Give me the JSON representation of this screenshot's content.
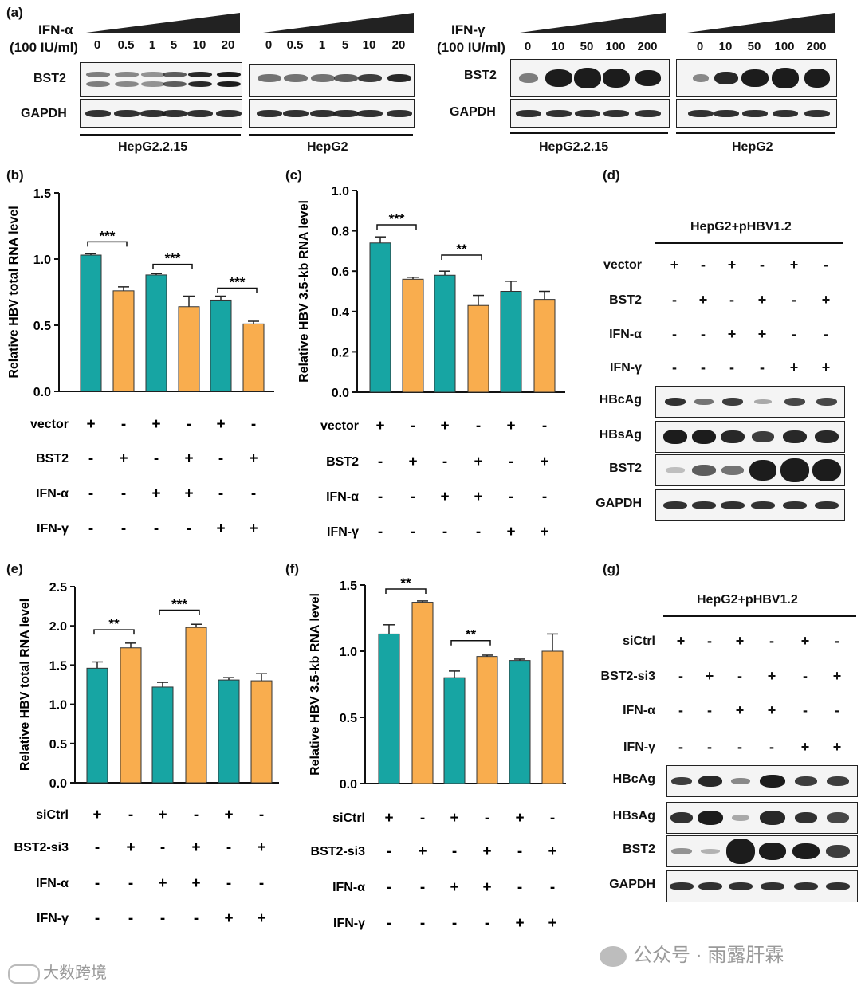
{
  "panel_a": {
    "label": "(a)",
    "ifn_alpha": {
      "agent": "IFN-α",
      "unit": "(100 IU/ml)",
      "doses": [
        "0",
        "0.5",
        "1",
        "5",
        "10",
        "20"
      ]
    },
    "ifn_gamma": {
      "agent": "IFN-γ",
      "unit": "(100 IU/ml)",
      "doses": [
        "0",
        "10",
        "50",
        "100",
        "200"
      ]
    },
    "rows": [
      "BST2",
      "GAPDH"
    ],
    "cells": [
      "HepG2.2.15",
      "HepG2",
      "HepG2.2.15",
      "HepG2"
    ]
  },
  "bar_colors": {
    "teal": "#17a5a3",
    "orange": "#f9ad4e"
  },
  "chart_data": [
    {
      "panel": "(b)",
      "type": "bar",
      "ylabel": "Relative HBV total RNA level",
      "ylim": [
        0,
        1.5
      ],
      "yticks": [
        "0.0",
        "0.5",
        "1.0",
        "1.5"
      ],
      "values": [
        1.03,
        0.76,
        0.88,
        0.64,
        0.69,
        0.51
      ],
      "errors": [
        0.01,
        0.03,
        0.01,
        0.08,
        0.03,
        0.02
      ],
      "colors": [
        "teal",
        "orange",
        "teal",
        "orange",
        "teal",
        "orange"
      ],
      "sig": [
        {
          "from": 0,
          "to": 1,
          "y": 1.13,
          "label": "***"
        },
        {
          "from": 2,
          "to": 3,
          "y": 0.96,
          "label": "***"
        },
        {
          "from": 4,
          "to": 5,
          "y": 0.78,
          "label": "***"
        }
      ],
      "rows": [
        {
          "name": "vector",
          "signs": [
            "+",
            "-",
            "+",
            "-",
            "+",
            "-"
          ]
        },
        {
          "name": "BST2",
          "signs": [
            "-",
            "+",
            "-",
            "+",
            "-",
            "+"
          ]
        },
        {
          "name": "IFN-α",
          "signs": [
            "-",
            "-",
            "+",
            "+",
            "-",
            "-"
          ]
        },
        {
          "name": "IFN-γ",
          "signs": [
            "-",
            "-",
            "-",
            "-",
            "+",
            "+"
          ]
        }
      ]
    },
    {
      "panel": "(c)",
      "type": "bar",
      "ylabel": "Relative HBV 3.5-kb RNA level",
      "ylim": [
        0,
        1.0
      ],
      "yticks": [
        "0.0",
        "0.2",
        "0.4",
        "0.6",
        "0.8",
        "1.0"
      ],
      "values": [
        0.74,
        0.56,
        0.58,
        0.43,
        0.5,
        0.46
      ],
      "errors": [
        0.03,
        0.01,
        0.02,
        0.05,
        0.05,
        0.04
      ],
      "colors": [
        "teal",
        "orange",
        "teal",
        "orange",
        "teal",
        "orange"
      ],
      "sig": [
        {
          "from": 0,
          "to": 1,
          "y": 0.83,
          "label": "***"
        },
        {
          "from": 2,
          "to": 3,
          "y": 0.68,
          "label": "**"
        }
      ],
      "rows": [
        {
          "name": "vector",
          "signs": [
            "+",
            "-",
            "+",
            "-",
            "+",
            "-"
          ]
        },
        {
          "name": "BST2",
          "signs": [
            "-",
            "+",
            "-",
            "+",
            "-",
            "+"
          ]
        },
        {
          "name": "IFN-α",
          "signs": [
            "-",
            "-",
            "+",
            "+",
            "-",
            "-"
          ]
        },
        {
          "name": "IFN-γ",
          "signs": [
            "-",
            "-",
            "-",
            "-",
            "+",
            "+"
          ]
        }
      ]
    },
    {
      "panel": "(e)",
      "type": "bar",
      "ylabel": "Relative HBV total RNA level",
      "ylim": [
        0,
        2.5
      ],
      "yticks": [
        "0.0",
        "0.5",
        "1.0",
        "1.5",
        "2.0",
        "2.5"
      ],
      "values": [
        1.46,
        1.72,
        1.22,
        1.98,
        1.31,
        1.3
      ],
      "errors": [
        0.08,
        0.06,
        0.06,
        0.04,
        0.03,
        0.09
      ],
      "colors": [
        "teal",
        "orange",
        "teal",
        "orange",
        "teal",
        "orange"
      ],
      "sig": [
        {
          "from": 0,
          "to": 1,
          "y": 1.95,
          "label": "**"
        },
        {
          "from": 2,
          "to": 3,
          "y": 2.2,
          "label": "***"
        }
      ],
      "rows": [
        {
          "name": "siCtrl",
          "signs": [
            "+",
            "-",
            "+",
            "-",
            "+",
            "-"
          ]
        },
        {
          "name": "BST2-si3",
          "signs": [
            "-",
            "+",
            "-",
            "+",
            "-",
            "+"
          ]
        },
        {
          "name": "IFN-α",
          "signs": [
            "-",
            "-",
            "+",
            "+",
            "-",
            "-"
          ]
        },
        {
          "name": "IFN-γ",
          "signs": [
            "-",
            "-",
            "-",
            "-",
            "+",
            "+"
          ]
        }
      ]
    },
    {
      "panel": "(f)",
      "type": "bar",
      "ylabel": "Relative HBV 3.5-kb RNA level",
      "ylim": [
        0,
        1.5
      ],
      "yticks": [
        "0.0",
        "0.5",
        "1.0",
        "1.5"
      ],
      "values": [
        1.13,
        1.37,
        0.8,
        0.96,
        0.93,
        1.0
      ],
      "errors": [
        0.07,
        0.01,
        0.05,
        0.01,
        0.01,
        0.13
      ],
      "colors": [
        "teal",
        "orange",
        "teal",
        "orange",
        "teal",
        "orange"
      ],
      "sig": [
        {
          "from": 0,
          "to": 1,
          "y": 1.47,
          "label": "**"
        },
        {
          "from": 2,
          "to": 3,
          "y": 1.08,
          "label": "**"
        }
      ],
      "rows": [
        {
          "name": "siCtrl",
          "signs": [
            "+",
            "-",
            "+",
            "-",
            "+",
            "-"
          ]
        },
        {
          "name": "BST2-si3",
          "signs": [
            "-",
            "+",
            "-",
            "+",
            "-",
            "+"
          ]
        },
        {
          "name": "IFN-α",
          "signs": [
            "-",
            "-",
            "+",
            "+",
            "-",
            "-"
          ]
        },
        {
          "name": "IFN-γ",
          "signs": [
            "-",
            "-",
            "-",
            "-",
            "+",
            "+"
          ]
        }
      ]
    }
  ],
  "panel_d": {
    "label": "(d)",
    "title": "HepG2+pHBV1.2",
    "rows": [
      {
        "name": "vector",
        "signs": [
          "+",
          "-",
          "+",
          "-",
          "+",
          "-"
        ]
      },
      {
        "name": "BST2",
        "signs": [
          "-",
          "+",
          "-",
          "+",
          "-",
          "+"
        ]
      },
      {
        "name": "IFN-α",
        "signs": [
          "-",
          "-",
          "+",
          "+",
          "-",
          "-"
        ]
      },
      {
        "name": "IFN-γ",
        "signs": [
          "-",
          "-",
          "-",
          "-",
          "+",
          "+"
        ]
      }
    ],
    "blots": [
      "HBcAg",
      "HBsAg",
      "BST2",
      "GAPDH"
    ]
  },
  "panel_g": {
    "label": "(g)",
    "title": "HepG2+pHBV1.2",
    "rows": [
      {
        "name": "siCtrl",
        "signs": [
          "+",
          "-",
          "+",
          "-",
          "+",
          "-"
        ]
      },
      {
        "name": "BST2-si3",
        "signs": [
          "-",
          "+",
          "-",
          "+",
          "-",
          "+"
        ]
      },
      {
        "name": "IFN-α",
        "signs": [
          "-",
          "-",
          "+",
          "+",
          "-",
          "-"
        ]
      },
      {
        "name": "IFN-γ",
        "signs": [
          "-",
          "-",
          "-",
          "-",
          "+",
          "+"
        ]
      }
    ],
    "blots": [
      "HBcAg",
      "HBsAg",
      "BST2",
      "GAPDH"
    ]
  },
  "watermarks": {
    "left": "大数跨境",
    "right": "公众号 · 雨露肝霖"
  }
}
